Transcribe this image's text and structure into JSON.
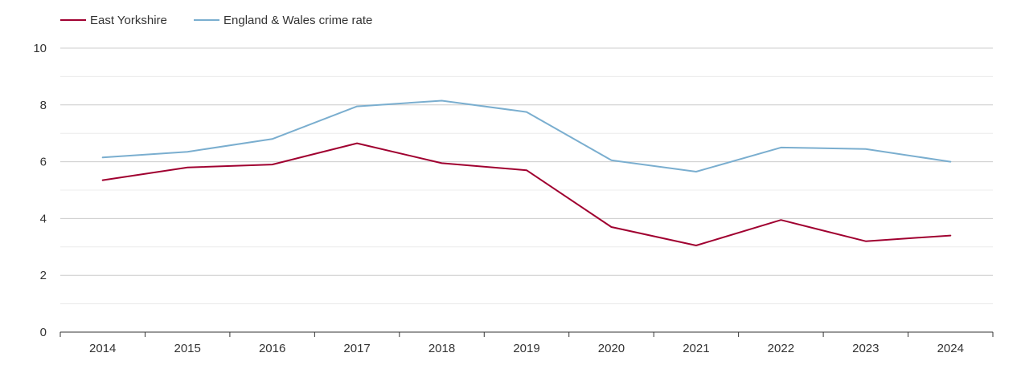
{
  "chart_data": {
    "type": "line",
    "title": "",
    "xlabel": "",
    "ylabel": "",
    "categories": [
      "2014",
      "2015",
      "2016",
      "2017",
      "2018",
      "2019",
      "2020",
      "2021",
      "2022",
      "2023",
      "2024"
    ],
    "ylim": [
      0,
      10
    ],
    "yticks": [
      0,
      2,
      4,
      6,
      8,
      10
    ],
    "ytick_labels": [
      "0",
      "2",
      "4",
      "6",
      "8",
      "10"
    ],
    "grid": true,
    "legend_position": "top-left",
    "series": [
      {
        "name": "East Yorkshire",
        "color": "#a00030",
        "values": [
          5.35,
          5.8,
          5.9,
          6.65,
          5.95,
          5.7,
          3.7,
          3.05,
          3.95,
          3.2,
          3.4
        ]
      },
      {
        "name": "England & Wales crime rate",
        "color": "#7aaecf",
        "values": [
          6.15,
          6.35,
          6.8,
          7.95,
          8.15,
          7.75,
          6.05,
          5.65,
          6.5,
          6.45,
          6.0
        ]
      }
    ]
  }
}
